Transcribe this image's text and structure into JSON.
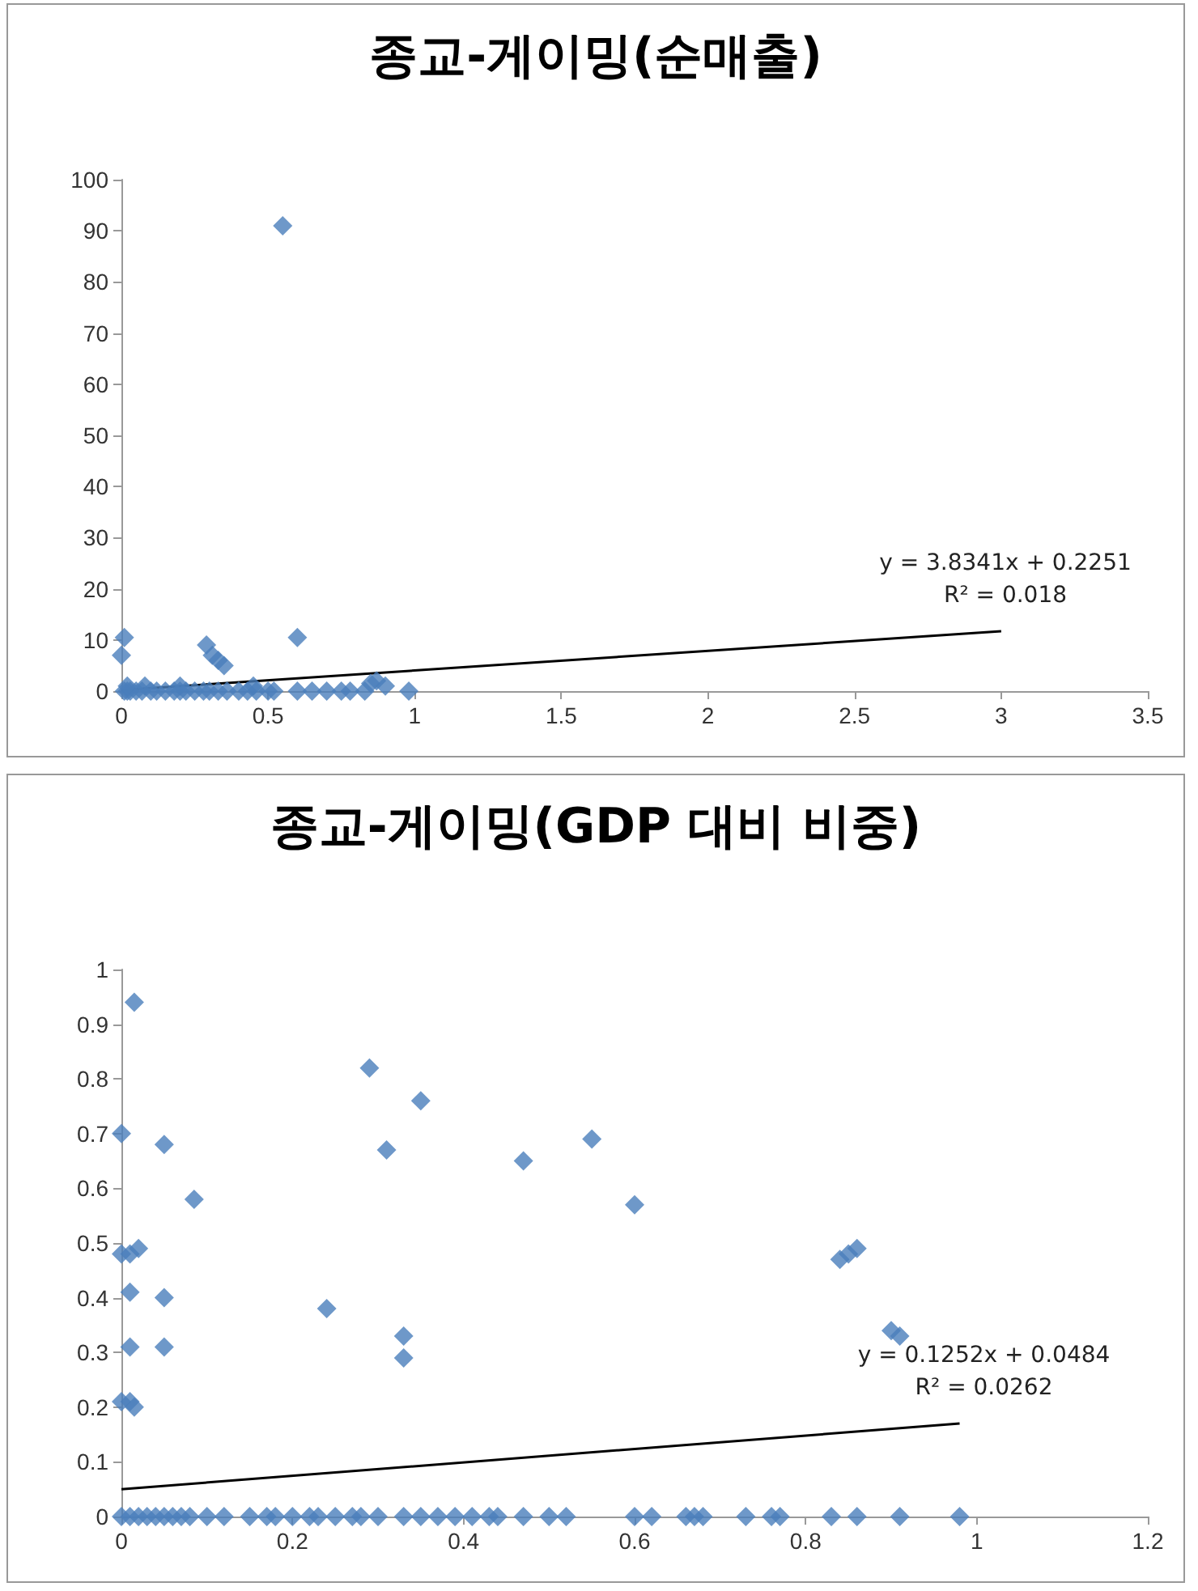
{
  "chart_data": [
    {
      "type": "scatter",
      "title": "종교-게이밍(순매출)",
      "marker": "diamond",
      "grid": false,
      "xlim": [
        0,
        3.5
      ],
      "xticks": [
        0,
        0.5,
        1,
        1.5,
        2,
        2.5,
        3,
        3.5
      ],
      "ylim": [
        0,
        100
      ],
      "yticks": [
        0,
        10,
        20,
        30,
        40,
        50,
        60,
        70,
        80,
        90,
        100
      ],
      "annotations": [
        "y = 3.8341x + 0.2251",
        "R² = 0.018"
      ],
      "series": [
        {
          "color": "#4a7ebb",
          "x": [
            0.55,
            0.01,
            0.6,
            0.29,
            0.31,
            0.33,
            0.35,
            0,
            0.01,
            0.02,
            0.03,
            0.05,
            0.07,
            0.1,
            0.12,
            0.15,
            0.18,
            0.2,
            0.22,
            0.25,
            0.28,
            0.3,
            0.33,
            0.36,
            0.4,
            0.43,
            0.46,
            0.5,
            0.52,
            0.6,
            0.65,
            0.7,
            0.75,
            0.78,
            0.83,
            0.85,
            0.87,
            0.9,
            0.98,
            0.02,
            0.08,
            0.2,
            0.45
          ],
          "values": [
            91,
            10.5,
            10.5,
            9,
            7,
            6,
            5,
            7,
            0,
            0,
            0,
            0,
            0,
            0,
            0,
            0,
            0,
            0,
            0,
            0,
            0,
            0,
            0,
            0,
            0,
            0,
            0,
            0,
            0,
            0,
            0,
            0,
            0,
            0,
            0,
            1.5,
            2,
            1,
            0,
            1,
            1,
            1,
            1
          ]
        },
        {
          "type": "line",
          "color": "#000000",
          "marker": "none",
          "x": [
            0,
            3
          ],
          "values": [
            0.2,
            11.7
          ]
        }
      ]
    },
    {
      "type": "scatter",
      "title": "종교-게이밍(GDP 대비 비중)",
      "marker": "diamond",
      "grid": false,
      "xlim": [
        0,
        1.2
      ],
      "xticks": [
        0,
        0.2,
        0.4,
        0.6,
        0.8,
        1,
        1.2
      ],
      "ylim": [
        0,
        1
      ],
      "yticks": [
        0,
        0.1,
        0.2,
        0.3,
        0.4,
        0.5,
        0.6,
        0.7,
        0.8,
        0.9,
        1
      ],
      "annotations": [
        "y = 0.1252x + 0.0484",
        "R² = 0.0262"
      ],
      "series": [
        {
          "color": "#4a7ebb",
          "x": [
            0.015,
            0,
            0.05,
            0.085,
            0,
            0.01,
            0.02,
            0.01,
            0.05,
            0.01,
            0.05,
            0,
            0.01,
            0.015,
            0.24,
            0.29,
            0.31,
            0.35,
            0.33,
            0.33,
            0.47,
            0.55,
            0.6,
            0.84,
            0.85,
            0.86,
            0.9,
            0.91,
            0,
            0.01,
            0.02,
            0.03,
            0.04,
            0.05,
            0.06,
            0.07,
            0.08,
            0.1,
            0.12,
            0.15,
            0.17,
            0.18,
            0.2,
            0.22,
            0.23,
            0.25,
            0.27,
            0.28,
            0.3,
            0.33,
            0.35,
            0.37,
            0.39,
            0.41,
            0.43,
            0.44,
            0.47,
            0.5,
            0.52,
            0.6,
            0.62,
            0.66,
            0.67,
            0.68,
            0.73,
            0.76,
            0.77,
            0.83,
            0.86,
            0.91,
            0.98
          ],
          "values": [
            0.94,
            0.7,
            0.68,
            0.58,
            0.48,
            0.48,
            0.49,
            0.41,
            0.4,
            0.31,
            0.31,
            0.21,
            0.21,
            0.2,
            0.38,
            0.82,
            0.67,
            0.76,
            0.33,
            0.29,
            0.65,
            0.69,
            0.57,
            0.47,
            0.48,
            0.49,
            0.34,
            0.33,
            0,
            0,
            0,
            0,
            0,
            0,
            0,
            0,
            0,
            0,
            0,
            0,
            0,
            0,
            0,
            0,
            0,
            0,
            0,
            0,
            0,
            0,
            0,
            0,
            0,
            0,
            0,
            0,
            0,
            0,
            0,
            0,
            0,
            0,
            0,
            0,
            0,
            0,
            0,
            0,
            0,
            0,
            0
          ]
        },
        {
          "type": "line",
          "color": "#000000",
          "marker": "none",
          "x": [
            0,
            0.98
          ],
          "values": [
            0.05,
            0.17
          ]
        }
      ]
    }
  ]
}
